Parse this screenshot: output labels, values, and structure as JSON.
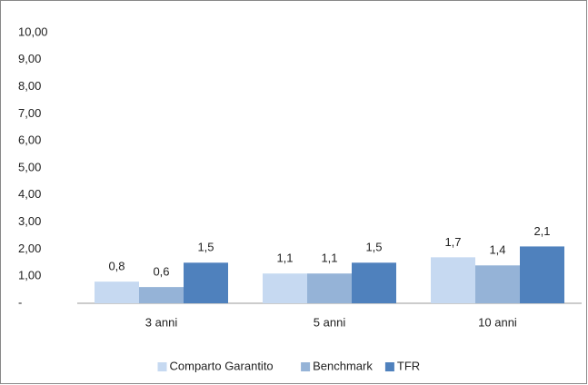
{
  "chart_data": {
    "type": "bar",
    "categories": [
      "3 anni",
      "5 anni",
      "10 anni"
    ],
    "series": [
      {
        "name": "Comparto Garantito",
        "color": "#c6d9f1",
        "values": [
          0.8,
          1.1,
          1.7
        ],
        "value_labels": [
          "0,8",
          "1,1",
          "1,7"
        ]
      },
      {
        "name": "Benchmark",
        "color": "#95b3d7",
        "values": [
          0.6,
          1.1,
          1.4
        ],
        "value_labels": [
          "0,6",
          "1,1",
          "1,4"
        ]
      },
      {
        "name": "TFR",
        "color": "#4f81bd",
        "values": [
          1.5,
          1.5,
          2.1
        ],
        "value_labels": [
          "1,5",
          "1,5",
          "2,1"
        ]
      }
    ],
    "ylim": [
      0,
      10
    ],
    "yticks": [
      {
        "value": 0,
        "label": "-"
      },
      {
        "value": 1,
        "label": "1,00"
      },
      {
        "value": 2,
        "label": "2,00"
      },
      {
        "value": 3,
        "label": "3,00"
      },
      {
        "value": 4,
        "label": "4,00"
      },
      {
        "value": 5,
        "label": "5,00"
      },
      {
        "value": 6,
        "label": "6,00"
      },
      {
        "value": 7,
        "label": "7,00"
      },
      {
        "value": 8,
        "label": "8,00"
      },
      {
        "value": 9,
        "label": "9,00"
      },
      {
        "value": 10,
        "label": "10,00"
      }
    ],
    "grid": false,
    "legend": "bottom"
  }
}
